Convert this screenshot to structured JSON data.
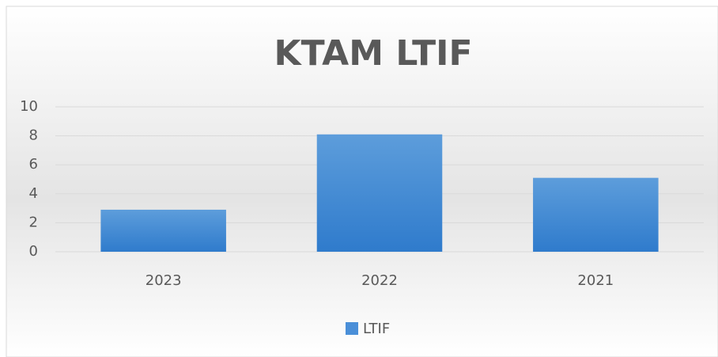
{
  "chart_data": {
    "type": "bar",
    "title": "KTAM LTIF",
    "categories": [
      "2023",
      "2022",
      "2021"
    ],
    "series": [
      {
        "name": "LTIF",
        "color": "#4a8fd8",
        "values": [
          2.9,
          8.1,
          5.1
        ]
      }
    ],
    "ylim": [
      0,
      10
    ],
    "yticks": [
      0,
      2,
      4,
      6,
      8,
      10
    ],
    "grid": true,
    "legend": "bottom"
  }
}
